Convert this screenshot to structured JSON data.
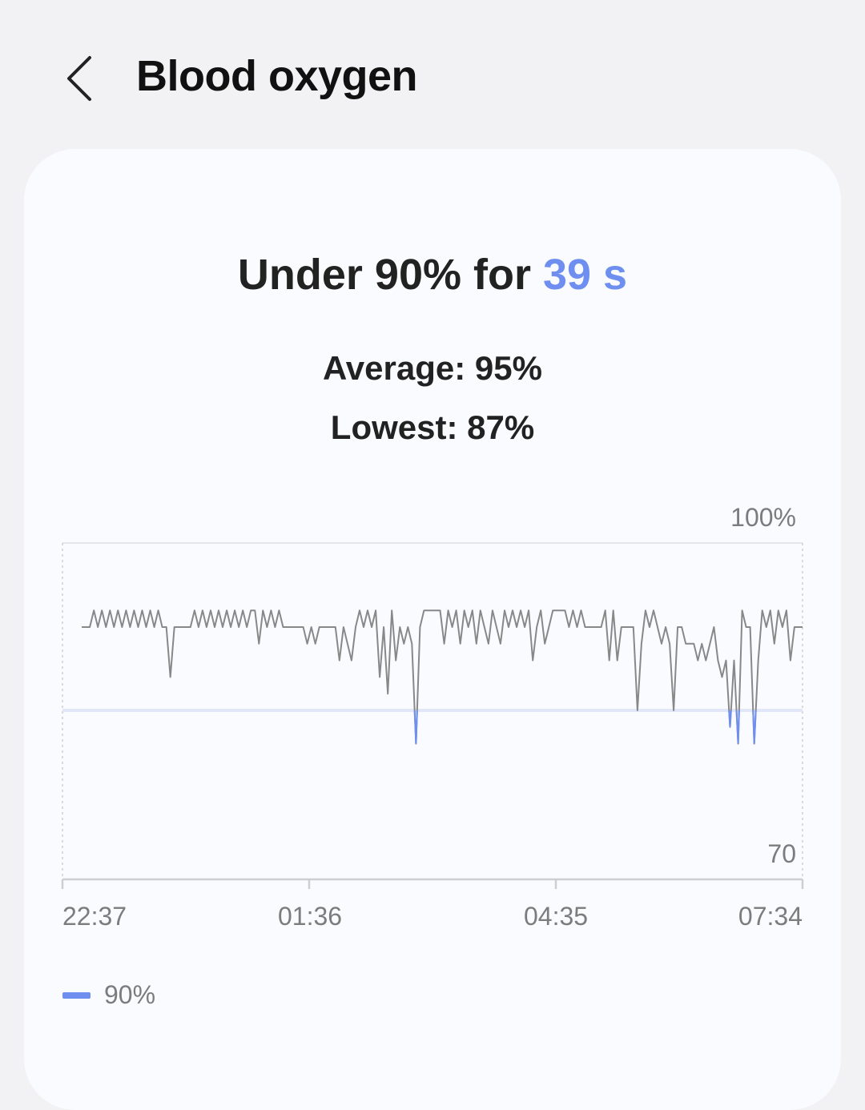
{
  "header": {
    "title": "Blood oxygen",
    "back_icon": "chevron-left-icon"
  },
  "summary": {
    "headline_prefix": "Under 90% for ",
    "headline_value": "39 s",
    "average": "Average: 95%",
    "lowest": "Lowest: 87%"
  },
  "colors": {
    "accent": "#6e8ff0",
    "line": "#888888",
    "threshold_line": "#e1e7f8",
    "background": "#f2f2f4",
    "card": "#fafbfe"
  },
  "chart_data": {
    "type": "line",
    "y_tick_labels": [
      "100%",
      "70"
    ],
    "ylim": [
      70,
      100
    ],
    "x_tick_labels": [
      "22:37",
      "01:36",
      "04:35",
      "07:34"
    ],
    "x_range": [
      "22:37",
      "07:34"
    ],
    "series_x_range": [
      "22:51",
      "07:34"
    ],
    "threshold": 90,
    "legend": [
      {
        "label": "90%",
        "color": "#6e8ff0"
      }
    ],
    "legend_placement": "bottom-left",
    "grid": false,
    "values": [
      95,
      95,
      95,
      96,
      95,
      96,
      95,
      96,
      95,
      96,
      95,
      96,
      95,
      96,
      95,
      96,
      95,
      96,
      95,
      96,
      95,
      95,
      92,
      95,
      95,
      95,
      95,
      95,
      96,
      95,
      96,
      95,
      96,
      95,
      96,
      95,
      96,
      95,
      96,
      95,
      96,
      95,
      96,
      96,
      94,
      96,
      95,
      96,
      95,
      96,
      95,
      95,
      95,
      95,
      95,
      95,
      94,
      95,
      94,
      95,
      95,
      95,
      95,
      95,
      93,
      95,
      94,
      93,
      95,
      96,
      95,
      96,
      95,
      96,
      92,
      95,
      91,
      96,
      93,
      95,
      94,
      95,
      94,
      88,
      95,
      96,
      96,
      96,
      96,
      96,
      94,
      96,
      95,
      96,
      94,
      96,
      95,
      96,
      94,
      96,
      95,
      94,
      96,
      95,
      94,
      96,
      95,
      96,
      95,
      96,
      95,
      96,
      93,
      95,
      96,
      94,
      95,
      96,
      96,
      96,
      96,
      95,
      96,
      95,
      96,
      95,
      95,
      95,
      95,
      95,
      96,
      93,
      96,
      93,
      95,
      95,
      95,
      95,
      90,
      94,
      96,
      95,
      96,
      95,
      94,
      95,
      94,
      90,
      95,
      95,
      94,
      94,
      94,
      93,
      94,
      93,
      94,
      95,
      93,
      92,
      93,
      89,
      93,
      88,
      96,
      95,
      95,
      88,
      93,
      96,
      95,
      96,
      94,
      96,
      95,
      96,
      93,
      95,
      95,
      95
    ]
  }
}
